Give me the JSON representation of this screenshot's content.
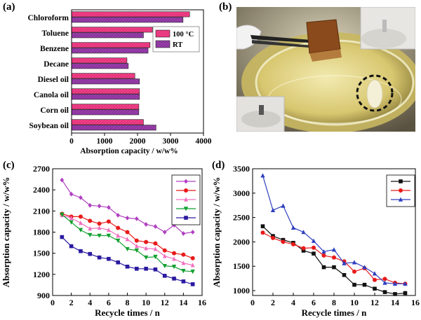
{
  "panel_labels": {
    "a": "(a)",
    "b": "(b)",
    "c": "(c)",
    "d": "(d)"
  },
  "colors": {
    "rt_fill": "#8b2f9e",
    "hot_fill": "#e8307a",
    "s1": "#b040c0",
    "s2": "#e81a1a",
    "s3": "#f070c0",
    "s4": "#12a030",
    "s5": "#2a1aa0",
    "d1": "#111111",
    "d2": "#e81a1a",
    "d3": "#3040c0"
  },
  "chart_data": [
    {
      "type": "bar",
      "orientation": "horizontal",
      "categories": [
        "Chloroform",
        "Toluene",
        "Benzene",
        "Decane",
        "Diesel oil",
        "Canola oil",
        "Corn oil",
        "Soybean oil"
      ],
      "series": [
        {
          "name": "100 °C",
          "values": [
            3580,
            2450,
            2380,
            1680,
            1920,
            2060,
            2040,
            2180
          ]
        },
        {
          "name": "RT",
          "values": [
            3380,
            2180,
            2320,
            1720,
            2060,
            2060,
            2040,
            2560
          ]
        }
      ],
      "xlabel": "Absorption capacity / w/w%",
      "xlim": [
        0,
        4000
      ],
      "xticks": [
        "0",
        "1000",
        "2000",
        "3000",
        "4000"
      ],
      "legend": "right"
    },
    {
      "type": "line",
      "x": [
        1,
        2,
        3,
        4,
        5,
        6,
        7,
        8,
        9,
        10,
        11,
        12,
        13,
        14,
        15
      ],
      "series": [
        {
          "values": [
            2540,
            2340,
            2290,
            2180,
            2170,
            2150,
            2040,
            2000,
            1990,
            1910,
            1880,
            1800,
            1900,
            1780,
            1800
          ]
        },
        {
          "values": [
            2060,
            2020,
            2020,
            1960,
            1920,
            1950,
            1860,
            1800,
            1680,
            1660,
            1640,
            1540,
            1500,
            1480,
            1430
          ]
        },
        {
          "values": [
            2040,
            2000,
            1930,
            1850,
            1860,
            1830,
            1750,
            1700,
            1600,
            1570,
            1560,
            1460,
            1420,
            1360,
            1330
          ]
        },
        {
          "values": [
            2050,
            1940,
            1830,
            1760,
            1750,
            1750,
            1680,
            1560,
            1540,
            1440,
            1450,
            1320,
            1310,
            1250,
            1240
          ]
        },
        {
          "values": [
            1730,
            1600,
            1530,
            1490,
            1440,
            1420,
            1370,
            1310,
            1280,
            1280,
            1270,
            1180,
            1140,
            1100,
            1060
          ]
        }
      ],
      "xlabel": "Recycle times / n",
      "ylabel": "Absorption capacity / w/w%",
      "xlim": [
        0,
        16
      ],
      "ylim": [
        900,
        2700
      ],
      "xticks": [
        "0",
        "2",
        "4",
        "6",
        "8",
        "10",
        "12",
        "14",
        "16"
      ],
      "yticks": [
        "900",
        "1200",
        "1500",
        "1800",
        "2100",
        "2400",
        "2700"
      ],
      "legend": "top-right"
    },
    {
      "type": "line",
      "x": [
        1,
        2,
        3,
        4,
        5,
        6,
        7,
        8,
        9,
        10,
        11,
        12,
        13,
        14,
        15
      ],
      "series": [
        {
          "values": [
            2320,
            2120,
            2040,
            1980,
            1820,
            1760,
            1480,
            1480,
            1320,
            1120,
            1120,
            1040,
            970,
            930,
            950
          ]
        },
        {
          "values": [
            2190,
            2080,
            2000,
            1950,
            1870,
            1880,
            1720,
            1680,
            1600,
            1390,
            1460,
            1220,
            1240,
            1160,
            1140
          ]
        },
        {
          "values": [
            3360,
            2650,
            2740,
            2290,
            2200,
            2020,
            1800,
            1840,
            1560,
            1580,
            1480,
            1350,
            1160,
            1140,
            1140
          ]
        }
      ],
      "xlabel": "Recycle times / n",
      "ylabel": "Absorption capacity / w/w%",
      "xlim": [
        0,
        16
      ],
      "ylim": [
        900,
        3500
      ],
      "xticks": [
        "0",
        "2",
        "4",
        "6",
        "8",
        "10",
        "12",
        "14",
        "16"
      ],
      "yticks": [
        "1000",
        "1500",
        "2000",
        "2500",
        "3000",
        "3500"
      ],
      "legend": "top-right"
    }
  ]
}
